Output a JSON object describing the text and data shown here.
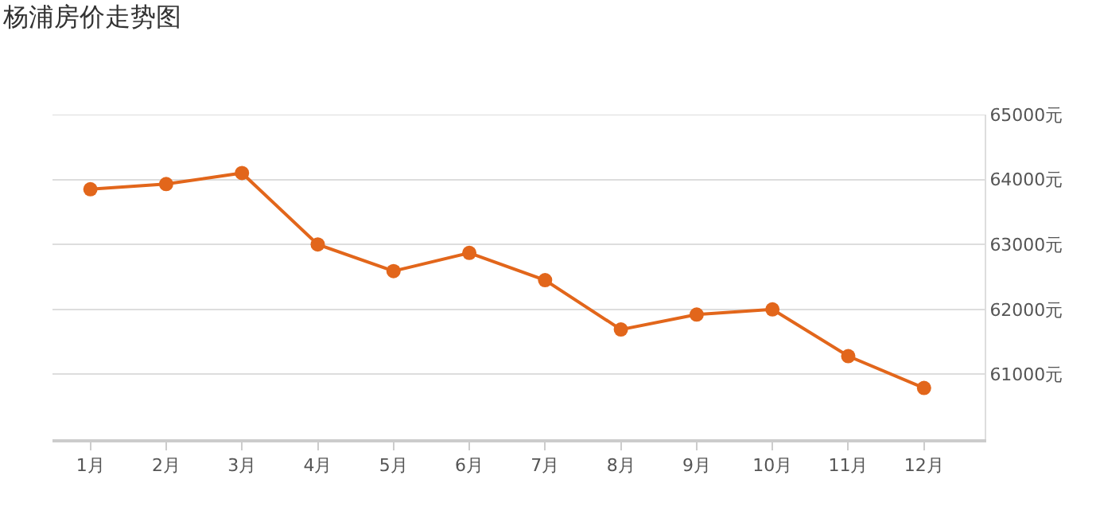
{
  "chart_data": {
    "type": "line",
    "title": "杨浦房价走势图",
    "categories": [
      "1月",
      "2月",
      "3月",
      "4月",
      "5月",
      "6月",
      "7月",
      "8月",
      "9月",
      "10月",
      "11月",
      "12月"
    ],
    "series": [
      {
        "color": "#e2661b",
        "values": [
          63850,
          63930,
          64100,
          63000,
          62590,
          62870,
          62450,
          61690,
          61920,
          62000,
          61280,
          60790
        ]
      }
    ],
    "ylim": [
      60000,
      65000
    ],
    "yticks": [
      {
        "value": 61000,
        "label": "61000元"
      },
      {
        "value": 62000,
        "label": "62000元"
      },
      {
        "value": 63000,
        "label": "63000元"
      },
      {
        "value": 64000,
        "label": "64000元"
      },
      {
        "value": 65000,
        "label": "65000元"
      }
    ],
    "grid": "y",
    "marker": "circle",
    "line_style": "solid"
  }
}
